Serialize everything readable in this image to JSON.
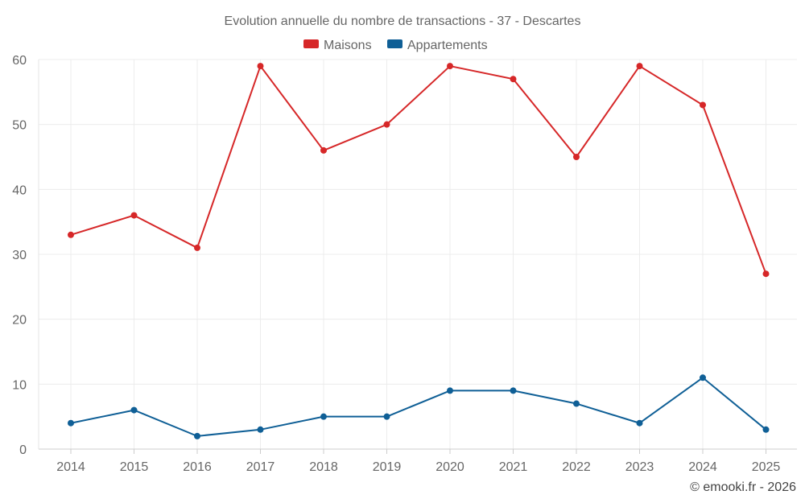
{
  "chart_data": {
    "type": "line",
    "title": "Evolution annuelle du nombre de transactions - 37 - Descartes",
    "categories": [
      "2014",
      "2015",
      "2016",
      "2017",
      "2018",
      "2019",
      "2020",
      "2021",
      "2022",
      "2023",
      "2024",
      "2025"
    ],
    "series": [
      {
        "name": "Maisons",
        "color": "#d62728",
        "values": [
          33,
          36,
          31,
          59,
          46,
          50,
          59,
          57,
          45,
          59,
          53,
          27
        ]
      },
      {
        "name": "Appartements",
        "color": "#0f5f96",
        "values": [
          4,
          6,
          2,
          3,
          5,
          5,
          9,
          9,
          7,
          4,
          11,
          3
        ]
      }
    ],
    "ylim": [
      0,
      60
    ],
    "yticks": [
      "0",
      "10",
      "20",
      "30",
      "40",
      "50",
      "60"
    ],
    "xlabel": "",
    "ylabel": "",
    "grid": true,
    "legend_position": "top-center"
  },
  "credit": "© emooki.fr - 2026"
}
